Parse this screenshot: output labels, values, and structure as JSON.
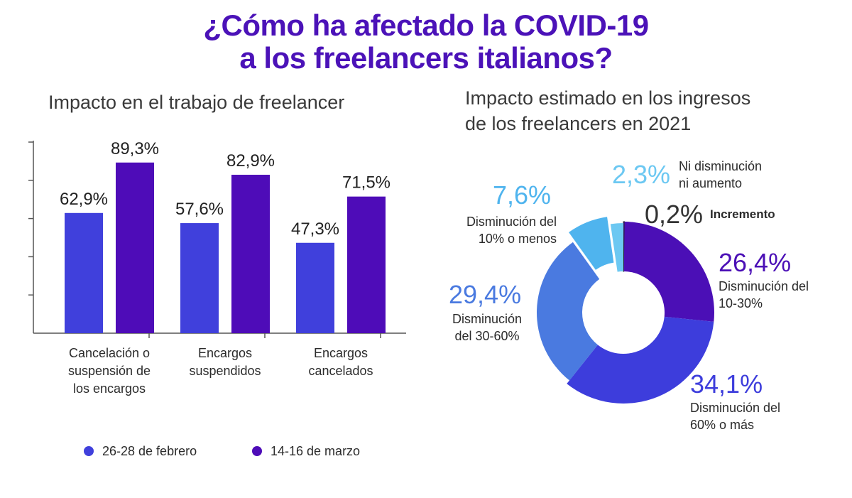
{
  "title": {
    "line1": "¿Cómo ha afectado la COVID-19",
    "line2": "a los freelancers italianos?",
    "color": "#4b12b8"
  },
  "chart_data": [
    {
      "type": "bar",
      "title": "Impacto en el trabajo de freelancer",
      "categories": [
        [
          "Cancelación o",
          "suspensión de",
          "los encargos"
        ],
        [
          "Encargos",
          "suspendidos"
        ],
        [
          "Encargos",
          "cancelados"
        ]
      ],
      "series": [
        {
          "name": "26-28 de febrero",
          "values": [
            62.9,
            57.6,
            47.3
          ],
          "labels": [
            "62,9%",
            "57,6%",
            "47,3%"
          ],
          "color": "#4040dc"
        },
        {
          "name": "14-16 de marzo",
          "values": [
            89.3,
            82.9,
            71.5
          ],
          "labels": [
            "89,3%",
            "82,9%",
            "71,5%"
          ],
          "color": "#4e0cb8"
        }
      ],
      "ylim": [
        0,
        100
      ],
      "y_ticks": 5,
      "grid": false,
      "legend_position": "bottom"
    },
    {
      "type": "pie",
      "title": [
        "Impacto estimado en los ingresos",
        "de los freelancers en 2021"
      ],
      "slices": [
        {
          "value": 0.2,
          "label": "0,2%",
          "desc": [
            "Incremento"
          ],
          "color": "#4a1fb0",
          "label_color": "#333333",
          "desc_bold": true
        },
        {
          "value": 26.4,
          "label": "26,4%",
          "desc": [
            "Disminución del",
            "10-30%"
          ],
          "color": "#4b0fb6",
          "label_color": "#4b0fb6"
        },
        {
          "value": 34.1,
          "label": "34,1%",
          "desc": [
            "Disminución del",
            "60% o más"
          ],
          "color": "#3d3ddc",
          "label_color": "#3d3ddc"
        },
        {
          "value": 29.4,
          "label": "29,4%",
          "desc": [
            "Disminución",
            "del 30-60%"
          ],
          "color": "#4a7ae0",
          "label_color": "#4a7ae0"
        },
        {
          "value": 7.6,
          "label": "7,6%",
          "desc": [
            "Disminución del",
            "10% o menos"
          ],
          "color": "#4fb4ee",
          "label_color": "#4fb4ee"
        },
        {
          "value": 2.3,
          "label": "2,3%",
          "desc": [
            "Ni disminución",
            "ni aumento"
          ],
          "color": "#6cc8f2",
          "label_color": "#6cc8f2"
        }
      ],
      "donut": true
    }
  ]
}
